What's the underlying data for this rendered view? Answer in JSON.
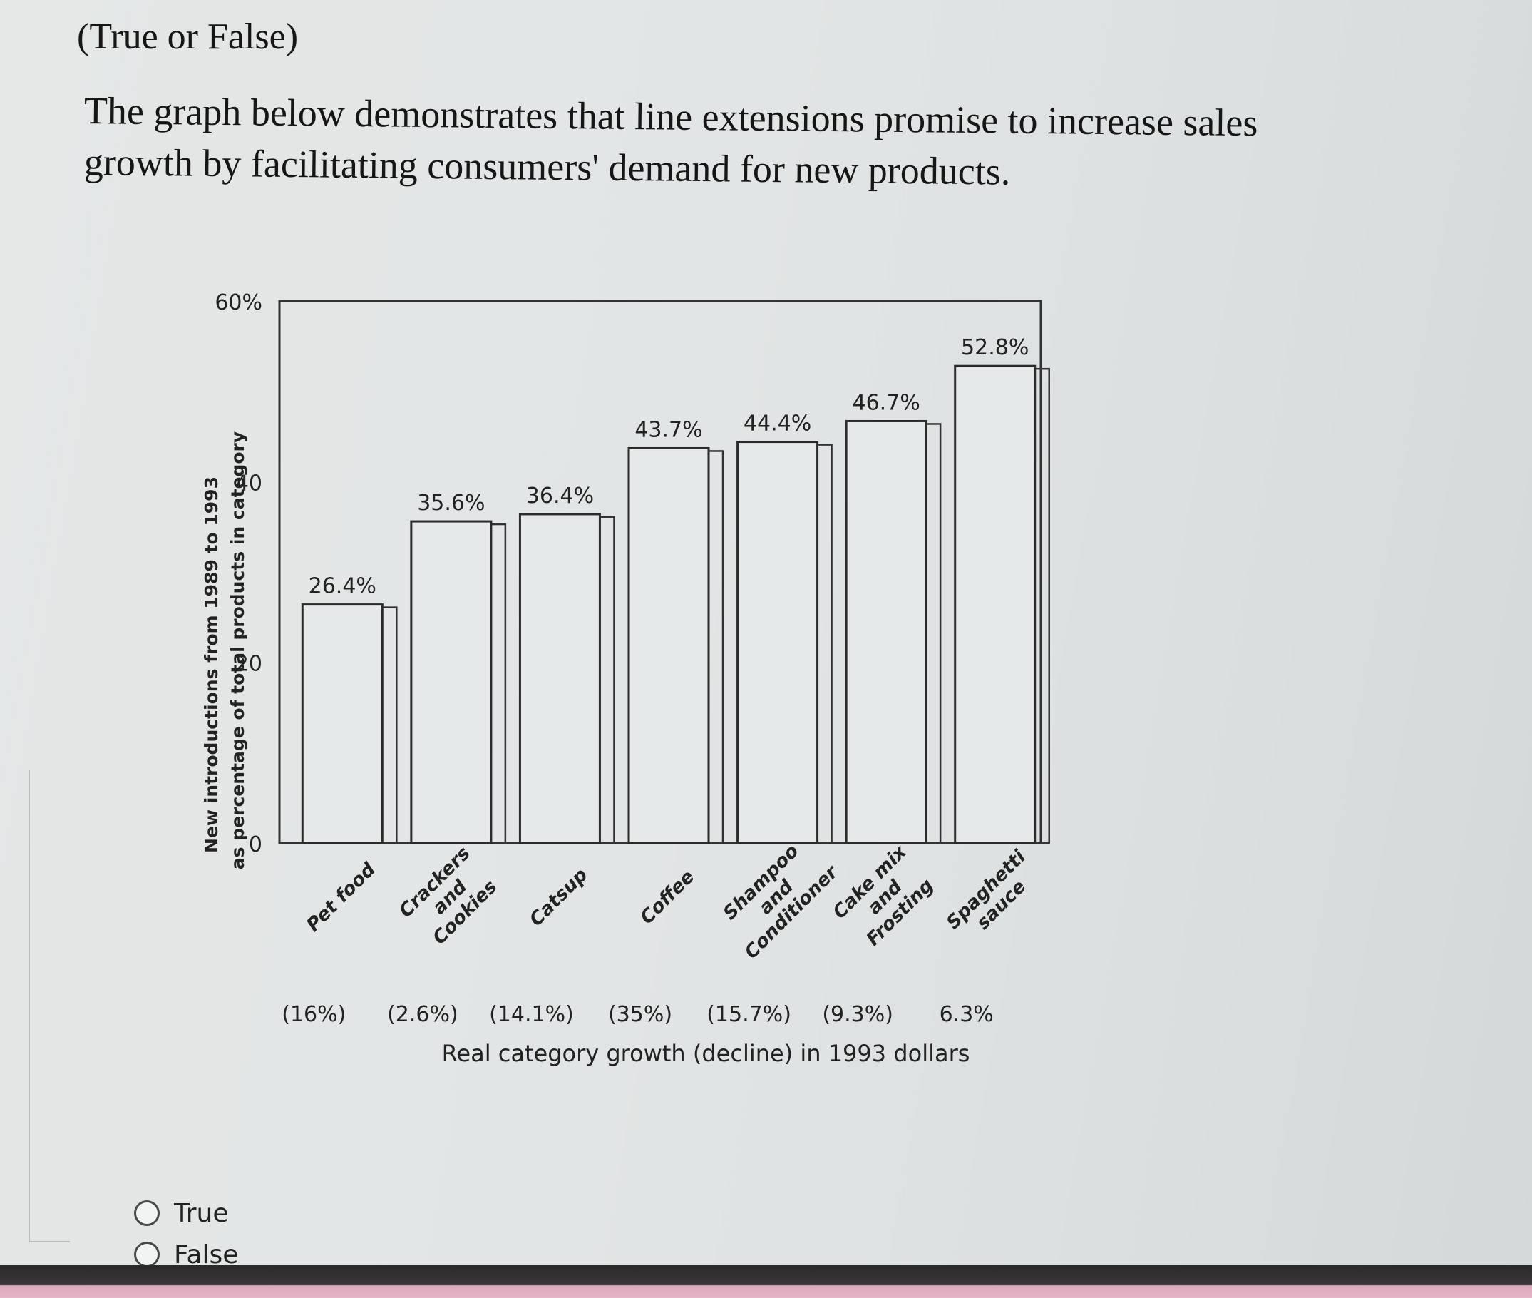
{
  "question": {
    "title": "(True or False)",
    "text_line1": "The graph below demonstrates that line extensions promise to increase sales",
    "text_line2": "growth by facilitating consumers' demand for new products."
  },
  "chart_data": {
    "type": "bar",
    "title": "",
    "ylabel_line1": "New introductions from 1989 to 1993",
    "ylabel_line2": "as percentage of total products in category",
    "xlabel": "Real category growth (decline) in 1993 dollars",
    "ylim": [
      0,
      60
    ],
    "yticks": [
      "0",
      "20",
      "40",
      "60%"
    ],
    "categories": [
      {
        "lines": [
          "Pet food"
        ]
      },
      {
        "lines": [
          "Crackers",
          "and",
          "Cookies"
        ]
      },
      {
        "lines": [
          "Catsup"
        ]
      },
      {
        "lines": [
          "Coffee"
        ]
      },
      {
        "lines": [
          "Shampoo",
          "and",
          "Conditioner"
        ]
      },
      {
        "lines": [
          "Cake mix",
          "and",
          "Frosting"
        ]
      },
      {
        "lines": [
          "Spaghetti",
          "sauce"
        ]
      }
    ],
    "values": [
      26.4,
      35.6,
      36.4,
      43.7,
      44.4,
      46.7,
      52.8
    ],
    "value_labels": [
      "26.4%",
      "35.6%",
      "36.4%",
      "43.7%",
      "44.4%",
      "46.7%",
      "52.8%"
    ],
    "growth_labels": [
      "(16%)",
      "(2.6%)",
      "(14.1%)",
      "(35%)",
      "(15.7%)",
      "(9.3%)",
      "6.3%"
    ],
    "growth_values": [
      -16,
      -2.6,
      -14.1,
      -35,
      -15.7,
      -9.3,
      6.3
    ],
    "grid": false
  },
  "options": [
    {
      "label": "True"
    },
    {
      "label": "False"
    }
  ]
}
